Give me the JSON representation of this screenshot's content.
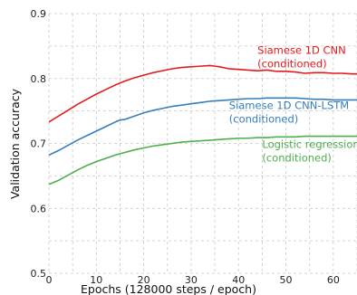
{
  "chart_data": {
    "type": "line",
    "xlabel": "Epochs (128000 steps / epoch)",
    "ylabel": "Validation accuracy",
    "xlim": [
      0,
      65
    ],
    "ylim": [
      0.5,
      0.9
    ],
    "xticks": [
      0,
      10,
      20,
      30,
      40,
      50,
      60
    ],
    "yticks": [
      0.5,
      0.6,
      0.7,
      0.8,
      0.9
    ],
    "xtick_labels": [
      "0",
      "10",
      "20",
      "30",
      "40",
      "50",
      "60"
    ],
    "ytick_labels": [
      "0.5",
      "0.6",
      "0.7",
      "0.8",
      "0.9"
    ],
    "grid": true,
    "grid_style": "dashed",
    "legend": "inline labels next to each curve",
    "series": [
      {
        "name": "Siamese 1D CNN\n(conditioned)",
        "color": "#e41a1c",
        "label_lines": [
          "Siamese 1D CNN",
          "(conditioned)"
        ],
        "x": [
          0,
          2,
          4,
          6,
          8,
          10,
          12,
          14,
          16,
          18,
          20,
          22,
          24,
          26,
          28,
          30,
          32,
          34,
          35,
          36,
          38,
          40,
          42,
          44,
          46,
          48,
          50,
          52,
          54,
          56,
          58,
          60,
          62,
          64,
          65
        ],
        "y": [
          0.733,
          0.742,
          0.751,
          0.76,
          0.768,
          0.776,
          0.783,
          0.79,
          0.796,
          0.801,
          0.805,
          0.809,
          0.812,
          0.815,
          0.817,
          0.818,
          0.819,
          0.82,
          0.819,
          0.818,
          0.815,
          0.814,
          0.813,
          0.812,
          0.813,
          0.811,
          0.811,
          0.81,
          0.808,
          0.809,
          0.809,
          0.808,
          0.808,
          0.807,
          0.807
        ]
      },
      {
        "name": "Siamese 1D CNN-LSTM\n(conditioned)",
        "color": "#377eb8",
        "label_lines": [
          "Siamese 1D CNN-LSTM",
          "(conditioned)"
        ],
        "x": [
          0,
          2,
          4,
          6,
          8,
          10,
          12,
          14,
          15,
          16,
          18,
          20,
          22,
          24,
          26,
          28,
          30,
          32,
          34,
          36,
          38,
          40,
          42,
          44,
          46,
          48,
          50,
          52,
          54,
          56,
          58,
          60,
          62,
          64,
          65
        ],
        "y": [
          0.682,
          0.689,
          0.697,
          0.705,
          0.712,
          0.719,
          0.726,
          0.733,
          0.736,
          0.737,
          0.742,
          0.747,
          0.751,
          0.754,
          0.757,
          0.759,
          0.761,
          0.763,
          0.765,
          0.766,
          0.767,
          0.768,
          0.769,
          0.769,
          0.77,
          0.77,
          0.77,
          0.77,
          0.769,
          0.768,
          0.768,
          0.767,
          0.767,
          0.767,
          0.767
        ]
      },
      {
        "name": "Logistic regression\n(conditioned)",
        "color": "#4daf4a",
        "label_lines": [
          "Logistic regression",
          "(conditioned)"
        ],
        "x": [
          0,
          2,
          4,
          6,
          8,
          10,
          12,
          14,
          16,
          18,
          20,
          22,
          24,
          26,
          28,
          30,
          32,
          34,
          36,
          38,
          40,
          42,
          44,
          46,
          48,
          50,
          52,
          54,
          56,
          58,
          60,
          62,
          64,
          65
        ],
        "y": [
          0.637,
          0.643,
          0.651,
          0.659,
          0.666,
          0.672,
          0.677,
          0.682,
          0.686,
          0.69,
          0.693,
          0.696,
          0.698,
          0.7,
          0.702,
          0.703,
          0.704,
          0.705,
          0.706,
          0.707,
          0.708,
          0.708,
          0.709,
          0.709,
          0.71,
          0.71,
          0.71,
          0.711,
          0.711,
          0.711,
          0.711,
          0.711,
          0.711,
          0.711
        ]
      }
    ]
  }
}
